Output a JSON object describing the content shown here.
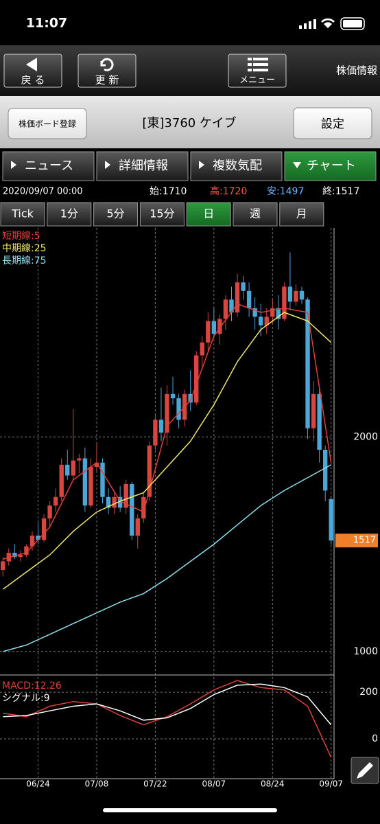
{
  "status_bar": {
    "time": "11:07"
  },
  "toolbar": {
    "back": "戻 る",
    "refresh": "更 新",
    "menu": "メニュー",
    "title": "株価情報"
  },
  "header": {
    "register": "株価ボード登録",
    "title": "[東]3760 ケイブ",
    "settings": "設定"
  },
  "tabs": [
    "ニュース",
    "詳細情報",
    "複数気配",
    "チャート"
  ],
  "info": {
    "date": "2020/09/07 00:00",
    "open": "始:1710",
    "high": "高:1720",
    "low": "安:1497",
    "close": "終:1517"
  },
  "periods": [
    "Tick",
    "1分",
    "5分",
    "15分",
    "日",
    "週",
    "月"
  ],
  "chart_data": [
    {
      "type": "candlestick",
      "up_color": "#d9453f",
      "down_color": "#4aa8d8",
      "xlim": [
        -0.5,
        56.5
      ],
      "ylim": [
        900,
        2980
      ],
      "yticks": [
        1000,
        2000
      ],
      "xticks": [
        {
          "value": 6,
          "label": "06/24"
        },
        {
          "value": 16,
          "label": "07/08"
        },
        {
          "value": 26,
          "label": "07/22"
        },
        {
          "value": 36,
          "label": "08/07"
        },
        {
          "value": 46,
          "label": "08/24"
        },
        {
          "value": 56,
          "label": "09/07"
        }
      ],
      "last_price": 1517,
      "candles": [
        [
          1380,
          1440,
          1350,
          1420
        ],
        [
          1420,
          1480,
          1400,
          1460
        ],
        [
          1460,
          1500,
          1430,
          1440
        ],
        [
          1440,
          1470,
          1420,
          1450
        ],
        [
          1450,
          1500,
          1440,
          1490
        ],
        [
          1490,
          1560,
          1470,
          1540
        ],
        [
          1540,
          1600,
          1500,
          1520
        ],
        [
          1520,
          1640,
          1510,
          1620
        ],
        [
          1620,
          1700,
          1580,
          1680
        ],
        [
          1680,
          1760,
          1650,
          1720
        ],
        [
          1720,
          1900,
          1700,
          1870
        ],
        [
          1870,
          1940,
          1800,
          1820
        ],
        [
          1820,
          2130,
          1800,
          1890
        ],
        [
          1890,
          1920,
          1830,
          1900
        ],
        [
          1900,
          1950,
          1650,
          1680
        ],
        [
          1680,
          1900,
          1670,
          1860
        ],
        [
          1860,
          1970,
          1840,
          1880
        ],
        [
          1880,
          1900,
          1690,
          1720
        ],
        [
          1720,
          1760,
          1640,
          1670
        ],
        [
          1670,
          1740,
          1640,
          1720
        ],
        [
          1720,
          1770,
          1650,
          1670
        ],
        [
          1670,
          1800,
          1640,
          1780
        ],
        [
          1780,
          1790,
          1520,
          1540
        ],
        [
          1540,
          1640,
          1480,
          1620
        ],
        [
          1620,
          1740,
          1600,
          1720
        ],
        [
          1720,
          1980,
          1700,
          1960
        ],
        [
          1960,
          2100,
          1940,
          2080
        ],
        [
          2080,
          2230,
          1980,
          2020
        ],
        [
          2020,
          2240,
          1960,
          2200
        ],
        [
          2200,
          2280,
          2150,
          2180
        ],
        [
          2180,
          2200,
          2040,
          2080
        ],
        [
          2080,
          2220,
          2050,
          2200
        ],
        [
          2200,
          2310,
          2120,
          2160
        ],
        [
          2160,
          2400,
          2150,
          2380
        ],
        [
          2380,
          2470,
          2330,
          2440
        ],
        [
          2440,
          2580,
          2400,
          2540
        ],
        [
          2540,
          2600,
          2460,
          2480
        ],
        [
          2480,
          2570,
          2430,
          2550
        ],
        [
          2550,
          2660,
          2500,
          2640
        ],
        [
          2640,
          2700,
          2540,
          2580
        ],
        [
          2580,
          2760,
          2560,
          2720
        ],
        [
          2720,
          2750,
          2640,
          2680
        ],
        [
          2680,
          2720,
          2560,
          2600
        ],
        [
          2600,
          2650,
          2500,
          2560
        ],
        [
          2560,
          2620,
          2470,
          2520
        ],
        [
          2520,
          2600,
          2480,
          2560
        ],
        [
          2560,
          2640,
          2530,
          2600
        ],
        [
          2600,
          2660,
          2500,
          2550
        ],
        [
          2550,
          2720,
          2540,
          2700
        ],
        [
          2700,
          2860,
          2590,
          2630
        ],
        [
          2630,
          2710,
          2610,
          2680
        ],
        [
          2680,
          2700,
          2620,
          2640
        ],
        [
          2640,
          2650,
          1990,
          2040
        ],
        [
          2040,
          2260,
          1980,
          2200
        ],
        [
          2200,
          2240,
          1880,
          1940
        ],
        [
          1940,
          1960,
          1700,
          1750
        ],
        [
          1710,
          1720,
          1497,
          1517
        ]
      ],
      "series": [
        {
          "name": "短期線:5",
          "color": "#e0403a",
          "x": [
            0,
            4,
            8,
            12,
            16,
            20,
            24,
            28,
            32,
            36,
            40,
            44,
            48,
            52,
            56
          ],
          "values": [
            1430,
            1460,
            1580,
            1800,
            1880,
            1700,
            1650,
            2050,
            2170,
            2470,
            2620,
            2580,
            2600,
            2580,
            1880
          ]
        },
        {
          "name": "中期線:25",
          "color": "#f0e868",
          "x": [
            0,
            4,
            8,
            12,
            16,
            20,
            24,
            28,
            32,
            36,
            40,
            44,
            48,
            52,
            56
          ],
          "values": [
            1290,
            1370,
            1450,
            1560,
            1650,
            1700,
            1740,
            1860,
            1980,
            2150,
            2350,
            2500,
            2580,
            2540,
            2440
          ]
        },
        {
          "name": "長期線:75",
          "color": "#8ee0ee",
          "x": [
            0,
            4,
            8,
            12,
            16,
            20,
            24,
            28,
            32,
            36,
            40,
            44,
            48,
            52,
            56
          ],
          "values": [
            1000,
            1030,
            1080,
            1130,
            1180,
            1230,
            1270,
            1340,
            1420,
            1500,
            1590,
            1680,
            1750,
            1810,
            1870
          ]
        }
      ]
    },
    {
      "type": "line",
      "xlim": [
        -0.5,
        56.5
      ],
      "ylim": [
        -165,
        268
      ],
      "yticks": [
        0,
        200
      ],
      "series": [
        {
          "name": "MACD:12.26",
          "color": "#e0403a",
          "x": [
            0,
            4,
            8,
            12,
            16,
            20,
            24,
            28,
            32,
            36,
            40,
            44,
            48,
            52,
            56
          ],
          "values": [
            110,
            95,
            140,
            160,
            150,
            100,
            60,
            95,
            150,
            210,
            250,
            220,
            210,
            140,
            -80
          ]
        },
        {
          "name": "シグナル:9",
          "color": "#ffffff",
          "x": [
            0,
            4,
            8,
            12,
            16,
            20,
            24,
            28,
            32,
            36,
            40,
            44,
            48,
            52,
            56
          ],
          "values": [
            95,
            100,
            120,
            140,
            150,
            120,
            80,
            90,
            130,
            190,
            230,
            235,
            220,
            180,
            60
          ]
        }
      ]
    }
  ]
}
